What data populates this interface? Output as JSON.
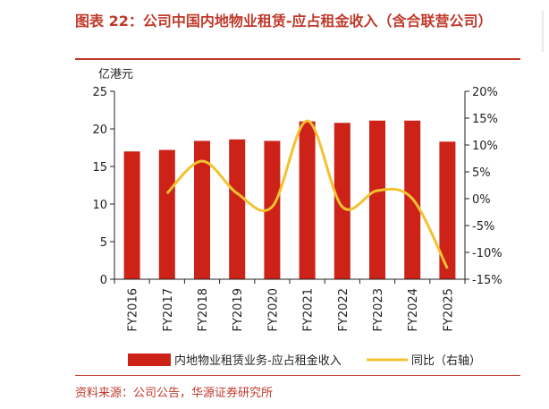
{
  "title": "图表 22：公司中国内地物业租赁-应占租金收入（含合联营公司）",
  "source": "资料来源：公司公告，华源证券研究所",
  "colors": {
    "bar": "#cc2218",
    "line": "#f2c230",
    "accent": "#c0392b"
  },
  "chart_data": {
    "type": "bar",
    "categories": [
      "FY2016",
      "FY2017",
      "FY2018",
      "FY2019",
      "FY2020",
      "FY2021",
      "FY2022",
      "FY2023",
      "FY2024",
      "FY2025"
    ],
    "y_unit_label": "亿港元",
    "ylim": [
      0,
      25
    ],
    "yticks": [
      "0",
      "5",
      "10",
      "15",
      "20",
      "25"
    ],
    "y2lim": [
      -15,
      20
    ],
    "y2ticks": [
      "-15%",
      "-10%",
      "-5%",
      "0%",
      "5%",
      "10%",
      "15%",
      "20%"
    ],
    "series": [
      {
        "name": "内地物业租赁业务-应占租金收入",
        "type": "bar",
        "axis": "left",
        "values": [
          17.0,
          17.2,
          18.4,
          18.6,
          18.4,
          21.0,
          20.8,
          21.1,
          21.1,
          18.3
        ]
      },
      {
        "name": "同比（右轴）",
        "type": "line",
        "axis": "right",
        "values": [
          null,
          1.0,
          7.0,
          1.0,
          -1.5,
          14.5,
          -1.5,
          1.5,
          0.0,
          -13.0
        ]
      }
    ],
    "legend_position": "bottom",
    "grid": false
  }
}
